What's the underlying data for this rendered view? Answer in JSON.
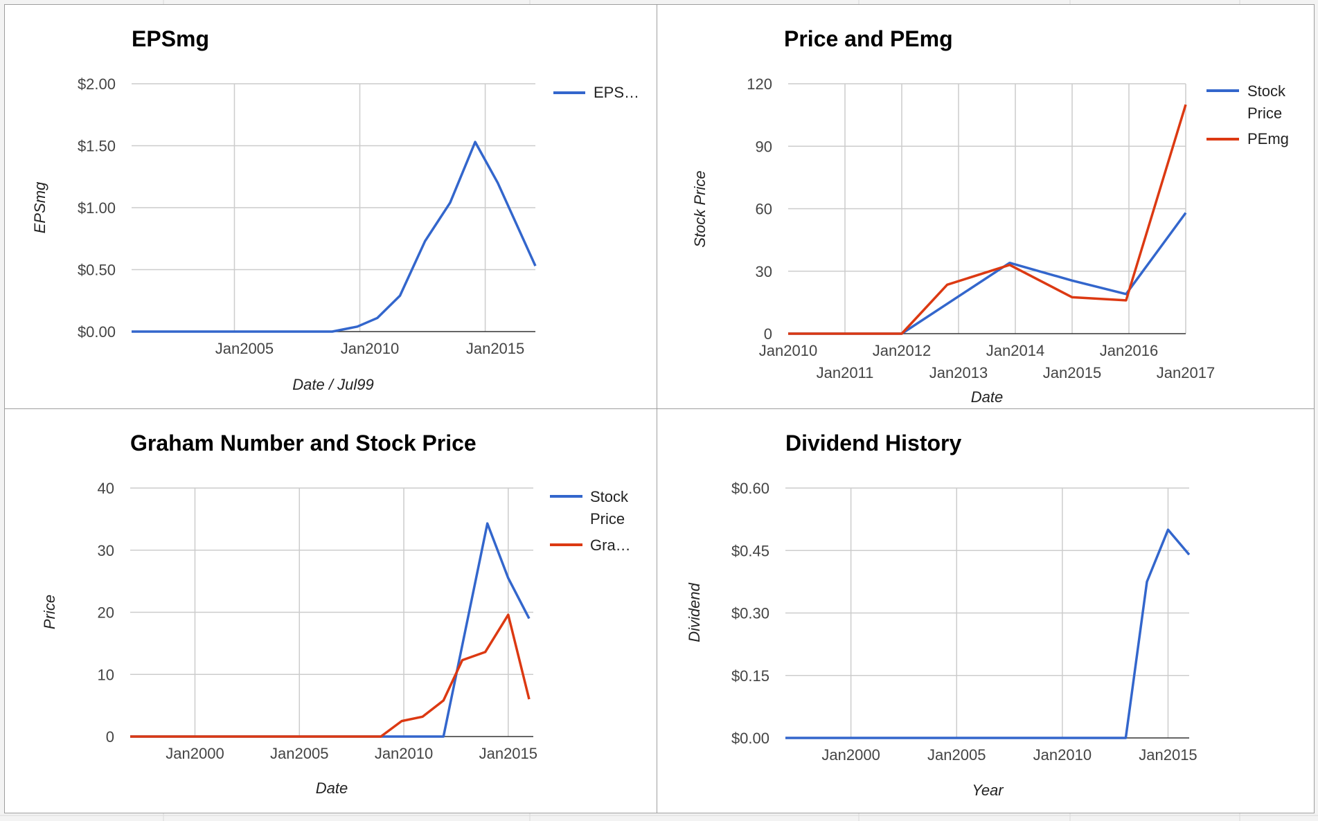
{
  "colors": {
    "blue": "#3366cc",
    "red": "#dc3912",
    "grid": "#cccccc",
    "baseline": "#333333"
  },
  "chart_data": [
    {
      "id": "eps",
      "type": "line",
      "title": "EPSmg",
      "xlabel": "Date / Jul99",
      "ylabel": "EPSmg",
      "xlim": [
        2000.5,
        2016.6
      ],
      "ylim": [
        0,
        2
      ],
      "yticks": [
        0,
        0.5,
        1.0,
        1.5,
        2.0
      ],
      "ytick_labels": [
        "$0.00",
        "$0.50",
        "$1.00",
        "$1.50",
        "$2.00"
      ],
      "xticks": [
        2005,
        2010,
        2015
      ],
      "xtick_labels": [
        "Jan2005",
        "Jan2010",
        "Jan2015"
      ],
      "vgrid": [
        2004.6,
        2009.6,
        2014.6
      ],
      "legend_position": "right",
      "series": [
        {
          "name": "EPS…",
          "color": "#3366cc",
          "x": [
            2000.5,
            2008.5,
            2009.5,
            2010.3,
            2011.2,
            2012.2,
            2013.2,
            2014.2,
            2015.1,
            2016.6
          ],
          "y": [
            0,
            0,
            0.04,
            0.11,
            0.29,
            0.73,
            1.04,
            1.53,
            1.2,
            0.53
          ]
        }
      ]
    },
    {
      "id": "price_pe",
      "type": "line",
      "title": "Price and PEmg",
      "xlabel": "Date",
      "ylabel": "Stock Price",
      "xlim": [
        2010,
        2017
      ],
      "ylim": [
        0,
        120
      ],
      "yticks": [
        0,
        30,
        60,
        90,
        120
      ],
      "ytick_labels": [
        "0",
        "30",
        "60",
        "90",
        "120"
      ],
      "xticks": [
        2010,
        2011,
        2012,
        2013,
        2014,
        2015,
        2016,
        2017
      ],
      "xtick_labels": [
        "Jan2010",
        "Jan2011",
        "Jan2012",
        "Jan2013",
        "Jan2014",
        "Jan2015",
        "Jan2016",
        "Jan2017"
      ],
      "vgrid": [
        2011,
        2012,
        2013,
        2014,
        2015,
        2016,
        2017
      ],
      "legend_position": "right",
      "series": [
        {
          "name": "Stock Price",
          "color": "#3366cc",
          "x": [
            2010,
            2012,
            2013.9,
            2015,
            2015.95,
            2017
          ],
          "y": [
            0,
            0,
            34,
            25.5,
            19,
            58
          ]
        },
        {
          "name": "PEmg",
          "color": "#dc3912",
          "x": [
            2010,
            2012,
            2012.8,
            2013.9,
            2015,
            2015.95,
            2017
          ],
          "y": [
            0,
            0,
            23.5,
            33,
            17.5,
            16,
            110
          ]
        }
      ]
    },
    {
      "id": "graham",
      "type": "line",
      "title": "Graham Number and Stock Price",
      "xlabel": "Date",
      "ylabel": "Price",
      "xlim": [
        1996.9,
        2016.2
      ],
      "ylim": [
        0,
        40
      ],
      "yticks": [
        0,
        10,
        20,
        30,
        40
      ],
      "ytick_labels": [
        "0",
        "10",
        "20",
        "30",
        "40"
      ],
      "xticks": [
        2000,
        2005,
        2010,
        2015
      ],
      "xtick_labels": [
        "Jan2000",
        "Jan2005",
        "Jan2010",
        "Jan2015"
      ],
      "vgrid": [
        2000,
        2005,
        2010,
        2015
      ],
      "legend_position": "right",
      "series": [
        {
          "name": "Stock Price",
          "color": "#3366cc",
          "x": [
            1996.9,
            2011.9,
            2014.0,
            2015.0,
            2016.0
          ],
          "y": [
            0,
            0,
            34.3,
            25.5,
            19
          ]
        },
        {
          "name": "Gra…",
          "color": "#dc3912",
          "x": [
            1996.9,
            2008.9,
            2009.9,
            2010.9,
            2011.9,
            2012.8,
            2013.9,
            2015.0,
            2016.0
          ],
          "y": [
            0,
            0,
            2.5,
            3.2,
            5.8,
            12.3,
            13.6,
            19.6,
            6
          ]
        }
      ]
    },
    {
      "id": "dividend",
      "type": "line",
      "title": "Dividend History",
      "xlabel": "Year",
      "ylabel": "Dividend",
      "xlim": [
        1996.9,
        2016.0
      ],
      "ylim": [
        0,
        0.6
      ],
      "yticks": [
        0,
        0.15,
        0.3,
        0.45,
        0.6
      ],
      "ytick_labels": [
        "$0.00",
        "$0.15",
        "$0.30",
        "$0.45",
        "$0.60"
      ],
      "xticks": [
        2000,
        2005,
        2010,
        2015
      ],
      "xtick_labels": [
        "Jan2000",
        "Jan2005",
        "Jan2010",
        "Jan2015"
      ],
      "vgrid": [
        2000,
        2005,
        2010,
        2015
      ],
      "legend_position": "none",
      "series": [
        {
          "name": "",
          "color": "#3366cc",
          "x": [
            1996.9,
            2013.0,
            2014.0,
            2015.0,
            2016.0
          ],
          "y": [
            0,
            0,
            0.375,
            0.5,
            0.44
          ]
        }
      ]
    }
  ]
}
